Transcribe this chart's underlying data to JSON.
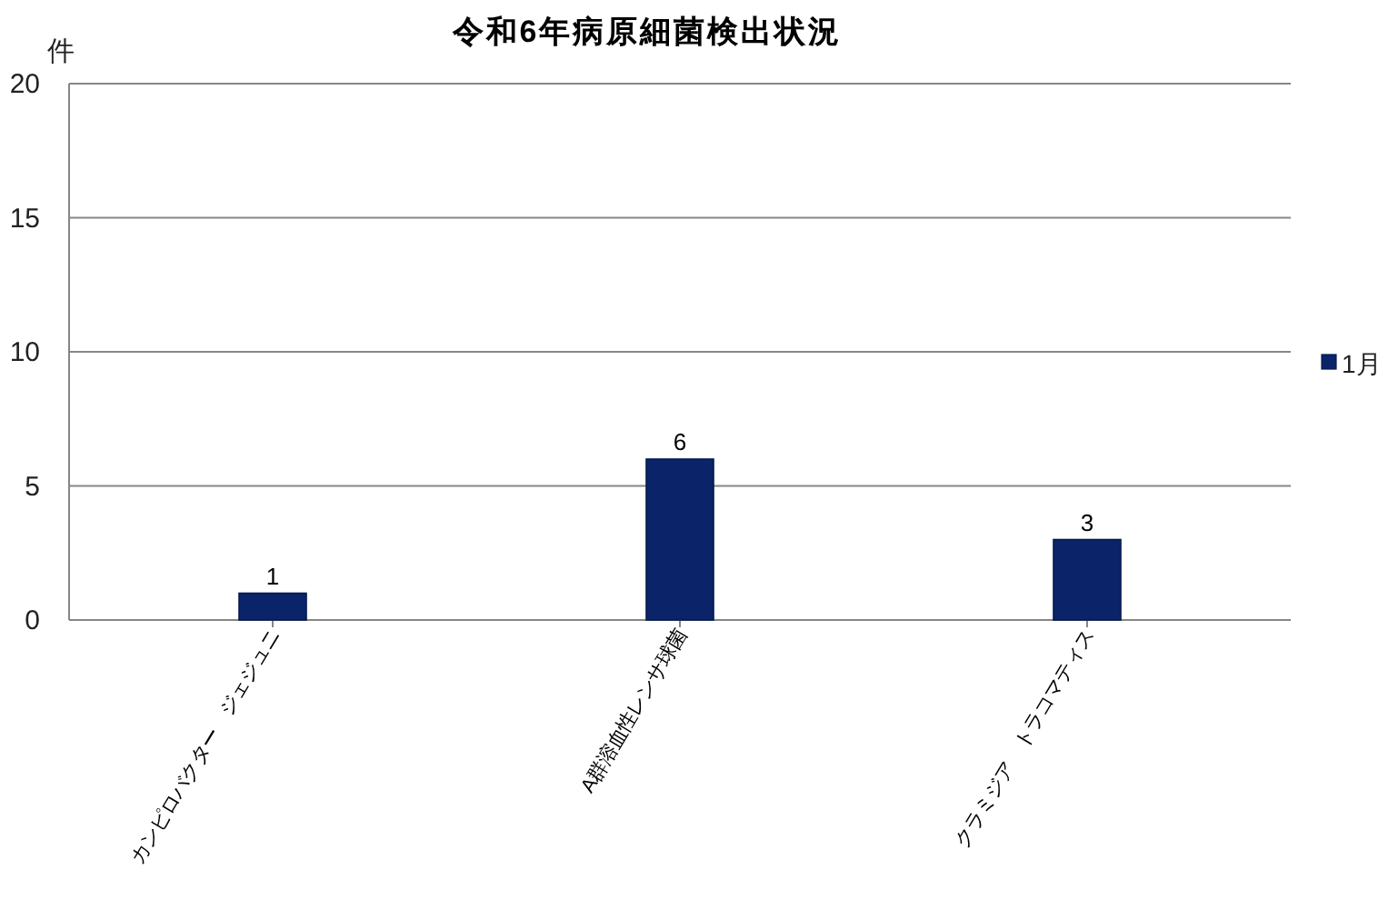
{
  "chart_data": {
    "type": "bar",
    "title": "令和6年病原細菌検出状況",
    "ylabel": "件",
    "categories": [
      "カンピロバクター　ジェジュニ",
      "A群溶血性レンサ球菌",
      "クラミジア　トラコマティス"
    ],
    "series": [
      {
        "name": "1月",
        "color": "#0b2469",
        "values": [
          1,
          6,
          3
        ]
      }
    ],
    "ylim": [
      0,
      20
    ],
    "yticks": [
      0,
      5,
      10,
      15,
      20
    ],
    "grid": "y",
    "legend": "right",
    "data_labels": true
  }
}
